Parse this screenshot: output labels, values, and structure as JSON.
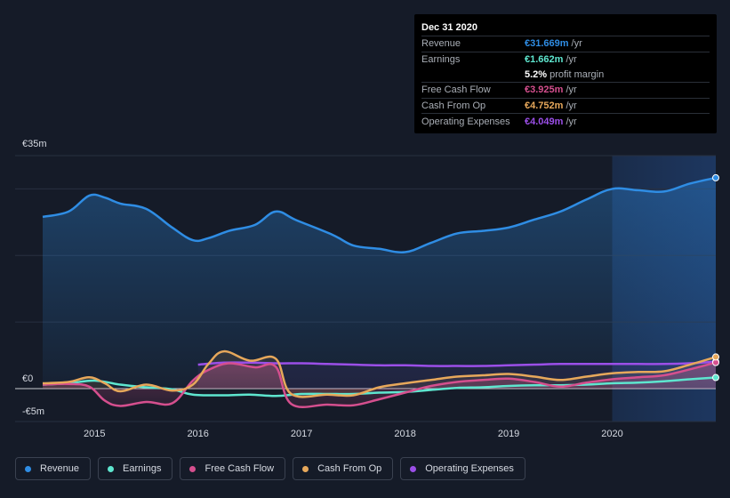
{
  "chart_data": {
    "type": "line",
    "ylabel_max": "€35m",
    "ylabel_zero": "€0",
    "ylabel_min": "-€5m",
    "ylim": [
      -5,
      35
    ],
    "xlim": [
      2014.5,
      2021.0
    ],
    "xticks": [
      "2015",
      "2016",
      "2017",
      "2018",
      "2019",
      "2020"
    ],
    "xtick_values": [
      2015,
      2016,
      2017,
      2018,
      2019,
      2020
    ],
    "forecast_start": 2020.0,
    "series": [
      {
        "key": "revenue",
        "name": "Revenue",
        "color": "#2f8de4",
        "area": true,
        "points": [
          [
            2014.5,
            25.8
          ],
          [
            2014.75,
            26.6
          ],
          [
            2014.95,
            29.0
          ],
          [
            2015.1,
            28.7
          ],
          [
            2015.25,
            27.8
          ],
          [
            2015.5,
            27.0
          ],
          [
            2015.75,
            24.2
          ],
          [
            2015.95,
            22.3
          ],
          [
            2016.1,
            22.6
          ],
          [
            2016.3,
            23.7
          ],
          [
            2016.55,
            24.6
          ],
          [
            2016.75,
            26.6
          ],
          [
            2016.95,
            25.3
          ],
          [
            2017.3,
            23.1
          ],
          [
            2017.5,
            21.5
          ],
          [
            2017.75,
            21.0
          ],
          [
            2018.0,
            20.5
          ],
          [
            2018.25,
            21.9
          ],
          [
            2018.5,
            23.3
          ],
          [
            2018.75,
            23.7
          ],
          [
            2019.0,
            24.2
          ],
          [
            2019.25,
            25.4
          ],
          [
            2019.5,
            26.6
          ],
          [
            2019.75,
            28.4
          ],
          [
            2020.0,
            30.0
          ],
          [
            2020.25,
            29.8
          ],
          [
            2020.5,
            29.6
          ],
          [
            2020.75,
            30.8
          ],
          [
            2021.0,
            31.669
          ]
        ]
      },
      {
        "key": "earnings",
        "name": "Earnings",
        "color": "#5ee6cf",
        "area": false,
        "points": [
          [
            2014.5,
            0.6
          ],
          [
            2014.75,
            0.8
          ],
          [
            2015.0,
            1.2
          ],
          [
            2015.25,
            0.6
          ],
          [
            2015.5,
            0.2
          ],
          [
            2015.75,
            -0.1
          ],
          [
            2015.95,
            -0.9
          ],
          [
            2016.25,
            -1.0
          ],
          [
            2016.5,
            -0.9
          ],
          [
            2016.75,
            -1.1
          ],
          [
            2017.0,
            -0.8
          ],
          [
            2017.25,
            -0.8
          ],
          [
            2017.5,
            -0.8
          ],
          [
            2017.75,
            -0.6
          ],
          [
            2018.0,
            -0.5
          ],
          [
            2018.25,
            -0.2
          ],
          [
            2018.5,
            0.1
          ],
          [
            2018.75,
            0.2
          ],
          [
            2019.0,
            0.4
          ],
          [
            2019.25,
            0.5
          ],
          [
            2019.5,
            0.5
          ],
          [
            2019.75,
            0.6
          ],
          [
            2020.0,
            0.8
          ],
          [
            2020.25,
            0.9
          ],
          [
            2020.5,
            1.1
          ],
          [
            2020.75,
            1.4
          ],
          [
            2021.0,
            1.662
          ]
        ]
      },
      {
        "key": "fcf",
        "name": "Free Cash Flow",
        "color": "#d54f8e",
        "area": true,
        "points": [
          [
            2014.5,
            0.6
          ],
          [
            2014.75,
            0.7
          ],
          [
            2014.95,
            0.3
          ],
          [
            2015.1,
            -1.8
          ],
          [
            2015.25,
            -2.6
          ],
          [
            2015.5,
            -2.0
          ],
          [
            2015.75,
            -2.2
          ],
          [
            2015.95,
            1.2
          ],
          [
            2016.1,
            2.8
          ],
          [
            2016.3,
            3.8
          ],
          [
            2016.55,
            3.2
          ],
          [
            2016.75,
            3.3
          ],
          [
            2016.9,
            -2.3
          ],
          [
            2017.25,
            -2.4
          ],
          [
            2017.5,
            -2.5
          ],
          [
            2017.75,
            -1.6
          ],
          [
            2018.0,
            -0.6
          ],
          [
            2018.25,
            0.4
          ],
          [
            2018.5,
            1.0
          ],
          [
            2018.75,
            1.3
          ],
          [
            2019.0,
            1.5
          ],
          [
            2019.25,
            1.0
          ],
          [
            2019.5,
            0.3
          ],
          [
            2019.75,
            0.9
          ],
          [
            2020.0,
            1.4
          ],
          [
            2020.25,
            1.7
          ],
          [
            2020.5,
            2.0
          ],
          [
            2020.75,
            2.9
          ],
          [
            2021.0,
            3.925
          ]
        ]
      },
      {
        "key": "cfo",
        "name": "Cash From Op",
        "color": "#e7a85b",
        "area": true,
        "points": [
          [
            2014.5,
            0.8
          ],
          [
            2014.75,
            1.0
          ],
          [
            2014.95,
            1.7
          ],
          [
            2015.1,
            0.8
          ],
          [
            2015.25,
            -0.4
          ],
          [
            2015.5,
            0.6
          ],
          [
            2015.75,
            -0.3
          ],
          [
            2015.95,
            0.6
          ],
          [
            2016.1,
            3.7
          ],
          [
            2016.25,
            5.6
          ],
          [
            2016.5,
            4.2
          ],
          [
            2016.75,
            4.5
          ],
          [
            2016.9,
            -0.8
          ],
          [
            2017.25,
            -0.9
          ],
          [
            2017.5,
            -1.0
          ],
          [
            2017.75,
            0.2
          ],
          [
            2018.0,
            0.8
          ],
          [
            2018.25,
            1.3
          ],
          [
            2018.5,
            1.8
          ],
          [
            2018.75,
            2.0
          ],
          [
            2019.0,
            2.2
          ],
          [
            2019.25,
            1.8
          ],
          [
            2019.5,
            1.3
          ],
          [
            2019.75,
            1.8
          ],
          [
            2020.0,
            2.3
          ],
          [
            2020.25,
            2.5
          ],
          [
            2020.5,
            2.6
          ],
          [
            2020.75,
            3.6
          ],
          [
            2021.0,
            4.752
          ]
        ]
      },
      {
        "key": "opex",
        "name": "Operating Expenses",
        "color": "#9b4fe8",
        "area": true,
        "points": [
          [
            2016.0,
            3.6
          ],
          [
            2016.25,
            3.9
          ],
          [
            2016.5,
            3.9
          ],
          [
            2016.75,
            3.8
          ],
          [
            2017.0,
            3.8
          ],
          [
            2017.25,
            3.7
          ],
          [
            2017.5,
            3.6
          ],
          [
            2017.75,
            3.5
          ],
          [
            2018.0,
            3.5
          ],
          [
            2018.25,
            3.4
          ],
          [
            2018.5,
            3.4
          ],
          [
            2018.75,
            3.4
          ],
          [
            2019.0,
            3.5
          ],
          [
            2019.25,
            3.6
          ],
          [
            2019.5,
            3.7
          ],
          [
            2019.75,
            3.7
          ],
          [
            2020.0,
            3.7
          ],
          [
            2020.25,
            3.7
          ],
          [
            2020.5,
            3.7
          ],
          [
            2020.75,
            3.8
          ],
          [
            2021.0,
            4.049
          ]
        ]
      }
    ]
  },
  "tooltip": {
    "date": "Dec 31 2020",
    "rows": [
      {
        "label": "Revenue",
        "value": "€31.669m",
        "unit": "/yr",
        "color": "#2f8de4"
      },
      {
        "label": "Earnings",
        "value": "€1.662m",
        "unit": "/yr",
        "color": "#5ee6cf"
      },
      {
        "label": "",
        "value": "5.2%",
        "unit": "profit margin",
        "color": "#ffffff"
      },
      {
        "label": "Free Cash Flow",
        "value": "€3.925m",
        "unit": "/yr",
        "color": "#d54f8e"
      },
      {
        "label": "Cash From Op",
        "value": "€4.752m",
        "unit": "/yr",
        "color": "#e7a85b"
      },
      {
        "label": "Operating Expenses",
        "value": "€4.049m",
        "unit": "/yr",
        "color": "#9b4fe8"
      }
    ]
  },
  "legend": [
    {
      "label": "Revenue",
      "color": "#2f8de4"
    },
    {
      "label": "Earnings",
      "color": "#5ee6cf"
    },
    {
      "label": "Free Cash Flow",
      "color": "#d54f8e"
    },
    {
      "label": "Cash From Op",
      "color": "#e7a85b"
    },
    {
      "label": "Operating Expenses",
      "color": "#9b4fe8"
    }
  ]
}
